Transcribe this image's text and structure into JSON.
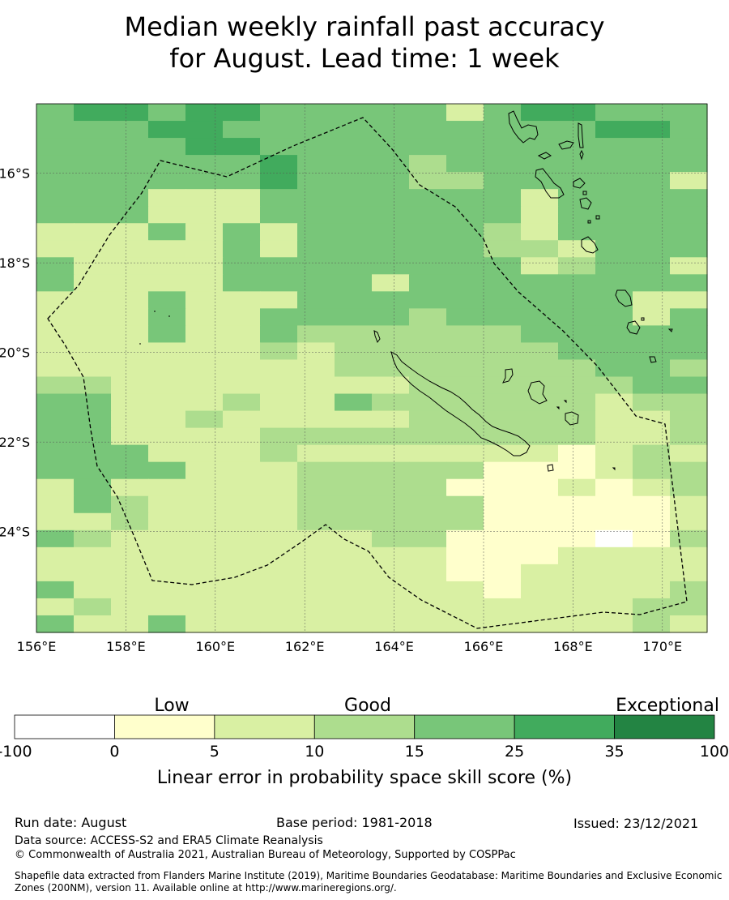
{
  "title_line1": "Median weekly rainfall past accuracy",
  "title_line2": "for August. Lead time: 1 week",
  "map": {
    "lon_range": [
      156,
      171
    ],
    "lat_range": [
      -26.25,
      -14.45
    ],
    "lon_ticks": [
      "156°E",
      "158°E",
      "160°E",
      "162°E",
      "164°E",
      "166°E",
      "168°E",
      "170°E"
    ],
    "lat_ticks": [
      "16°S",
      "18°S",
      "20°S",
      "22°S",
      "24°S"
    ],
    "grid": true,
    "boundary": "dashed",
    "colors": {
      "lt0": "#ffffff",
      "c0_5": "#ffffcc",
      "c5_10": "#d9f0a3",
      "c10_15": "#addd8e",
      "c15_25": "#78c679",
      "c25_35": "#41ab5d",
      "c35_100": "#238443"
    }
  },
  "legend": {
    "labels_top": [
      "Low",
      "Good",
      "Exceptional"
    ],
    "ticks": [
      "-100",
      "0",
      "5",
      "10",
      "15",
      "25",
      "35",
      "100"
    ],
    "colors": [
      "#ffffff",
      "#ffffcc",
      "#d9f0a3",
      "#addd8e",
      "#78c679",
      "#41ab5d",
      "#238443"
    ],
    "title": "Linear error in probability space skill score (%)"
  },
  "footer": {
    "run_date": "Run date: August",
    "base_period": "Base period: 1981-2018",
    "issued": "Issued: 23/12/2021",
    "data_source": "Data source: ACCESS-S2 and ERA5 Climate Reanalysis",
    "copyright": "© Commonwealth of Australia 2021, Australian Bureau of Meteorology, Supported by COSPPac",
    "shapefile": "Shapefile data extracted from Flanders Marine Institute (2019), Maritime Boundaries Geodatabase: Maritime Boundaries and Exclusive Economic Zones (200NM), version 11. Available online at http://www.marineregions.org/."
  }
}
